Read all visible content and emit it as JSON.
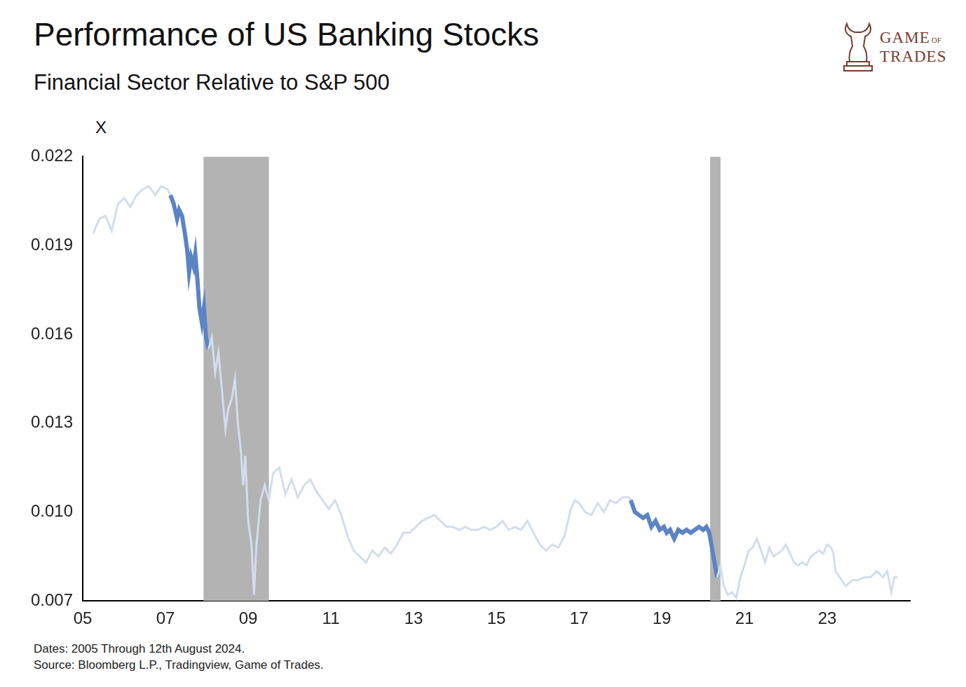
{
  "chart_data": {
    "type": "line",
    "title": "Performance of US Banking Stocks",
    "subtitle": "Financial Sector Relative to S&P 500",
    "y_label": "X",
    "notes": [
      "Dates: 2005 Through 12th August 2024.",
      "Source: Bloomberg L.P., Tradingview, Game of Trades."
    ],
    "logo": [
      "GAME",
      "OF",
      "TRADES"
    ],
    "color": "#d3ddee",
    "highlight": {
      "color": "#5b84c4",
      "ranges": [
        [
          2007.12,
          2008.04
        ],
        [
          2018.25,
          2020.34
        ]
      ]
    },
    "shaded": {
      "color": "#b3b3b3",
      "ranges": [
        [
          2007.92,
          2009.5
        ],
        [
          2020.17,
          2020.42
        ]
      ]
    },
    "x": [
      2005.25,
      2005.4,
      2005.55,
      2005.7,
      2005.85,
      2006.0,
      2006.15,
      2006.3,
      2006.45,
      2006.6,
      2006.75,
      2006.9,
      2007.05,
      2007.12,
      2007.2,
      2007.28,
      2007.33,
      2007.4,
      2007.47,
      2007.53,
      2007.57,
      2007.62,
      2007.68,
      2007.72,
      2007.77,
      2007.82,
      2007.88,
      2007.93,
      2007.98,
      2008.04,
      2008.12,
      2008.2,
      2008.28,
      2008.36,
      2008.45,
      2008.52,
      2008.6,
      2008.68,
      2008.75,
      2008.82,
      2008.88,
      2008.93,
      2009.0,
      2009.08,
      2009.14,
      2009.2,
      2009.3,
      2009.4,
      2009.5,
      2009.6,
      2009.75,
      2009.9,
      2010.05,
      2010.2,
      2010.35,
      2010.5,
      2010.65,
      2010.8,
      2010.95,
      2011.1,
      2011.25,
      2011.4,
      2011.55,
      2011.7,
      2011.85,
      2012.0,
      2012.15,
      2012.3,
      2012.45,
      2012.6,
      2012.75,
      2012.9,
      2013.05,
      2013.2,
      2013.35,
      2013.5,
      2013.65,
      2013.8,
      2013.95,
      2014.1,
      2014.25,
      2014.4,
      2014.55,
      2014.7,
      2014.85,
      2015.0,
      2015.15,
      2015.3,
      2015.45,
      2015.6,
      2015.75,
      2015.9,
      2016.05,
      2016.2,
      2016.35,
      2016.5,
      2016.65,
      2016.8,
      2016.9,
      2017.0,
      2017.15,
      2017.3,
      2017.45,
      2017.6,
      2017.75,
      2017.9,
      2018.05,
      2018.2,
      2018.25,
      2018.35,
      2018.45,
      2018.55,
      2018.65,
      2018.75,
      2018.85,
      2018.95,
      2019.05,
      2019.12,
      2019.2,
      2019.3,
      2019.4,
      2019.5,
      2019.6,
      2019.7,
      2019.8,
      2019.9,
      2020.0,
      2020.08,
      2020.15,
      2020.2,
      2020.25,
      2020.3,
      2020.34,
      2020.42,
      2020.5,
      2020.6,
      2020.7,
      2020.8,
      2020.9,
      2021.0,
      2021.1,
      2021.2,
      2021.3,
      2021.4,
      2021.5,
      2021.6,
      2021.7,
      2021.8,
      2021.9,
      2022.0,
      2022.1,
      2022.2,
      2022.3,
      2022.4,
      2022.5,
      2022.6,
      2022.7,
      2022.8,
      2022.9,
      2023.0,
      2023.1,
      2023.15,
      2023.2,
      2023.3,
      2023.45,
      2023.6,
      2023.75,
      2023.9,
      2024.05,
      2024.2,
      2024.35,
      2024.45,
      2024.55,
      2024.62,
      2024.7
    ],
    "values": [
      0.0194,
      0.0199,
      0.02,
      0.0195,
      0.0204,
      0.0206,
      0.0203,
      0.0207,
      0.0209,
      0.021,
      0.0207,
      0.021,
      0.0209,
      0.0207,
      0.0204,
      0.0199,
      0.0202,
      0.02,
      0.0194,
      0.0188,
      0.0181,
      0.0186,
      0.0183,
      0.0187,
      0.0179,
      0.0169,
      0.0164,
      0.0169,
      0.0159,
      0.0155,
      0.0159,
      0.0147,
      0.0154,
      0.0142,
      0.0128,
      0.0135,
      0.0138,
      0.0145,
      0.013,
      0.0121,
      0.0109,
      0.0119,
      0.0097,
      0.0089,
      0.0072,
      0.0089,
      0.0104,
      0.0109,
      0.0104,
      0.0113,
      0.0115,
      0.0106,
      0.0111,
      0.0105,
      0.0109,
      0.0111,
      0.0107,
      0.0104,
      0.0101,
      0.0104,
      0.0099,
      0.0092,
      0.0087,
      0.0085,
      0.0083,
      0.0087,
      0.0085,
      0.0088,
      0.0086,
      0.0089,
      0.0093,
      0.0093,
      0.0095,
      0.0097,
      0.0098,
      0.0099,
      0.0097,
      0.0095,
      0.0095,
      0.0094,
      0.0095,
      0.0094,
      0.0094,
      0.0095,
      0.0094,
      0.0095,
      0.0097,
      0.0094,
      0.0095,
      0.0094,
      0.0097,
      0.0093,
      0.0089,
      0.0087,
      0.0089,
      0.0088,
      0.0092,
      0.0101,
      0.0104,
      0.0103,
      0.01,
      0.0099,
      0.0103,
      0.01,
      0.0104,
      0.0103,
      0.0105,
      0.0105,
      0.0104,
      0.01,
      0.0099,
      0.0098,
      0.0099,
      0.0095,
      0.0097,
      0.0094,
      0.0095,
      0.0093,
      0.0094,
      0.0091,
      0.0094,
      0.0093,
      0.0094,
      0.0093,
      0.0094,
      0.0095,
      0.0094,
      0.0095,
      0.0093,
      0.0089,
      0.0085,
      0.0081,
      0.0078,
      0.0082,
      0.0075,
      0.0072,
      0.0073,
      0.0071,
      0.0078,
      0.0082,
      0.0087,
      0.0088,
      0.0091,
      0.0087,
      0.0083,
      0.0088,
      0.0085,
      0.0086,
      0.0087,
      0.0089,
      0.0086,
      0.0083,
      0.0082,
      0.0083,
      0.0082,
      0.0085,
      0.0086,
      0.0087,
      0.0086,
      0.0089,
      0.0088,
      0.0086,
      0.008,
      0.0078,
      0.0075,
      0.0077,
      0.0077,
      0.0078,
      0.0078,
      0.008,
      0.0078,
      0.008,
      0.0073,
      0.0078,
      0.0078
    ],
    "xlim": [
      2005,
      2025
    ],
    "xticks": [
      {
        "value": 2005,
        "label": "05"
      },
      {
        "value": 2007,
        "label": "07"
      },
      {
        "value": 2009,
        "label": "09"
      },
      {
        "value": 2011,
        "label": "11"
      },
      {
        "value": 2013,
        "label": "13"
      },
      {
        "value": 2015,
        "label": "15"
      },
      {
        "value": 2017,
        "label": "17"
      },
      {
        "value": 2019,
        "label": "19"
      },
      {
        "value": 2021,
        "label": "21"
      },
      {
        "value": 2023,
        "label": "23"
      }
    ],
    "ylim": [
      0.007,
      0.022
    ],
    "yticks": [
      0.007,
      {
        "value": 0.01,
        "label": "0.010"
      },
      0.013,
      0.016,
      0.019,
      0.022
    ],
    "grid": false
  }
}
